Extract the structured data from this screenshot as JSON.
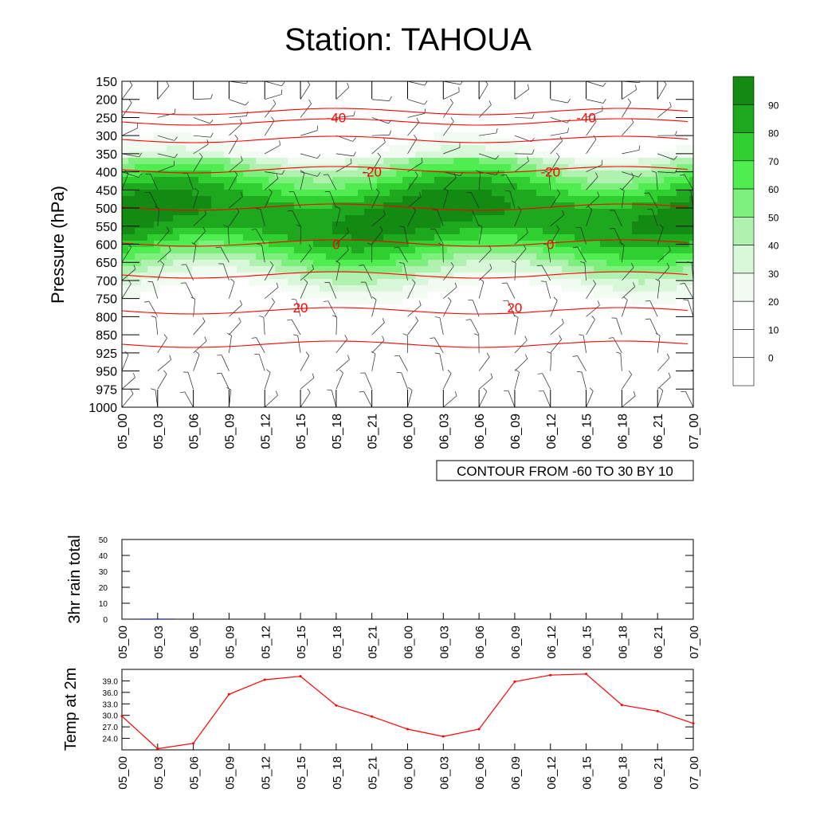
{
  "title": "Station: TAHOUA",
  "colors": {
    "fills": [
      "#ffffff",
      "#f1fbf1",
      "#d8f7d8",
      "#b0f1b0",
      "#7cef7c",
      "#4fed4f",
      "#2fcf2f",
      "#1ea81e",
      "#138b13"
    ],
    "temp_line": "#ff0000",
    "isotherm": "#ff0000"
  },
  "chart_data": [
    {
      "type": "heatmap",
      "title": "Station: TAHOUA",
      "xlabel": "",
      "ylabel": "Pressure (hPa)",
      "x_ticks": [
        "05_00",
        "05_03",
        "05_06",
        "05_09",
        "05_12",
        "05_15",
        "05_18",
        "05_21",
        "06_00",
        "06_03",
        "06_06",
        "06_09",
        "06_12",
        "06_15",
        "06_18",
        "06_21",
        "07_00"
      ],
      "y_ticks": [
        150,
        200,
        250,
        300,
        350,
        400,
        450,
        500,
        550,
        600,
        650,
        700,
        750,
        800,
        850,
        925,
        950,
        975,
        1000
      ],
      "colorbar": {
        "labels": [
          0,
          10,
          20,
          30,
          40,
          50,
          60,
          70,
          80,
          90
        ]
      },
      "annotation": "CONTOUR FROM -60 TO 30 BY 10",
      "isotherm_labels": [
        {
          "x": "05_18",
          "p": 250,
          "text": "-40"
        },
        {
          "x": "06_15",
          "p": 250,
          "text": "-40"
        },
        {
          "x": "05_21",
          "p": 400,
          "text": "-20"
        },
        {
          "x": "06_12",
          "p": 400,
          "text": "-20"
        },
        {
          "x": "05_18",
          "p": 600,
          "text": "0"
        },
        {
          "x": "06_12",
          "p": 600,
          "text": "0"
        },
        {
          "x": "05_15",
          "p": 775,
          "text": "20"
        },
        {
          "x": "06_09",
          "p": 775,
          "text": "20"
        }
      ],
      "rh_labels": [
        "20",
        "40",
        "60",
        "80"
      ],
      "wind_barbs": "shown at every 3 h and every pressure level"
    },
    {
      "type": "bar",
      "ylabel": "3hr rain total",
      "ylim": [
        0,
        50
      ],
      "y_ticks": [
        0,
        10,
        20,
        30,
        40,
        50
      ],
      "categories": [
        "05_00",
        "05_03",
        "05_06",
        "05_09",
        "05_12",
        "05_15",
        "05_18",
        "05_21",
        "06_00",
        "06_03",
        "06_06",
        "06_09",
        "06_12",
        "06_15",
        "06_18",
        "06_21",
        "07_00"
      ],
      "values": [
        0,
        0.3,
        0,
        0,
        0,
        0,
        0,
        0,
        0,
        0,
        0,
        0,
        0,
        0,
        0,
        0,
        0
      ]
    },
    {
      "type": "line",
      "ylabel": "Temp at 2m",
      "ylim": [
        21.0,
        42.0
      ],
      "y_ticks": [
        "24.0",
        "27.0",
        "30.0",
        "33.0",
        "36.0",
        "39.0"
      ],
      "categories": [
        "05_00",
        "05_03",
        "05_06",
        "05_09",
        "05_12",
        "05_15",
        "05_18",
        "05_21",
        "06_00",
        "06_03",
        "06_06",
        "06_09",
        "06_12",
        "06_15",
        "06_18",
        "06_21",
        "07_00"
      ],
      "values": [
        29.8,
        21.3,
        22.7,
        35.5,
        39.3,
        40.2,
        32.6,
        29.7,
        26.4,
        24.5,
        26.4,
        38.8,
        40.5,
        40.8,
        32.7,
        31.1,
        27.9
      ]
    }
  ]
}
